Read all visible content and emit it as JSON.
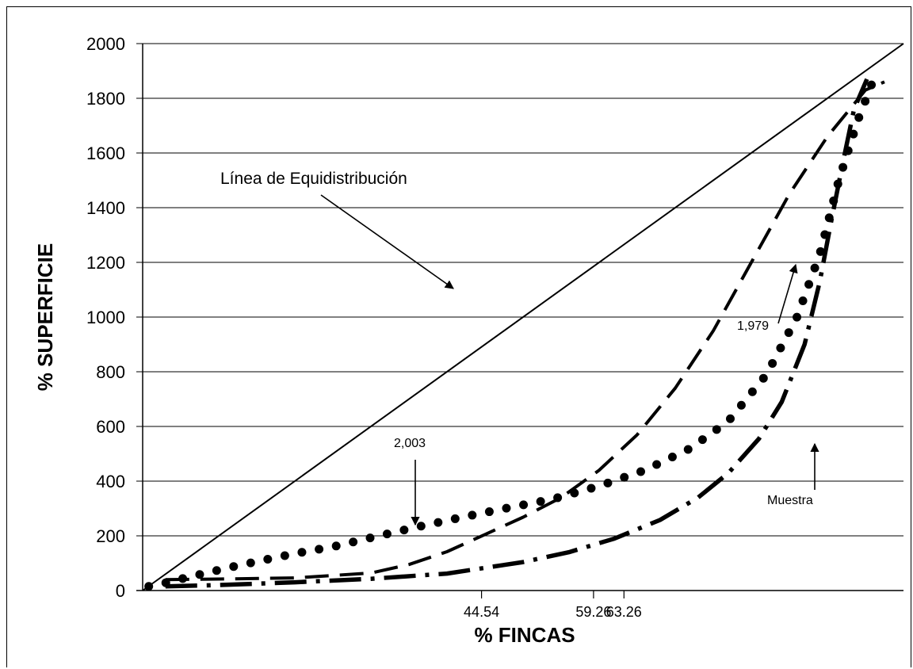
{
  "chart_data": {
    "type": "line",
    "xlabel": "% FINCAS",
    "ylabel": "% SUPERFICIE",
    "ylim": [
      0,
      2000
    ],
    "xlim": [
      0,
      100
    ],
    "yticks": [
      "0",
      "200",
      "400",
      "600",
      "800",
      "1000",
      "1200",
      "1400",
      "1600",
      "1800",
      "2000"
    ],
    "xticks": [
      {
        "label": "44.54",
        "value": 44.54
      },
      {
        "label": "59.26",
        "value": 59.26
      },
      {
        "label": "63.26",
        "value": 63.26
      }
    ],
    "grid": "horizontal",
    "series": [
      {
        "style": "solid",
        "points": [
          [
            0,
            0
          ],
          [
            100,
            2000
          ]
        ]
      },
      {
        "style": "dashed",
        "points": [
          [
            3,
            40
          ],
          [
            10,
            42
          ],
          [
            20,
            46
          ],
          [
            30,
            64
          ],
          [
            35,
            95
          ],
          [
            40,
            142
          ],
          [
            45,
            205
          ],
          [
            50,
            268
          ],
          [
            55,
            340
          ],
          [
            60,
            440
          ],
          [
            65,
            570
          ],
          [
            70,
            740
          ],
          [
            75,
            950
          ],
          [
            80,
            1200
          ],
          [
            85,
            1450
          ],
          [
            90,
            1660
          ],
          [
            95,
            1830
          ],
          [
            97.5,
            1860
          ]
        ]
      },
      {
        "style": "dotted",
        "points": [
          [
            0.8,
            15
          ],
          [
            3,
            28
          ],
          [
            5,
            42
          ],
          [
            8,
            62
          ],
          [
            12,
            88
          ],
          [
            16,
            112
          ],
          [
            20,
            135
          ],
          [
            25,
            160
          ],
          [
            30,
            193
          ],
          [
            36,
            232
          ],
          [
            42,
            268
          ],
          [
            48,
            302
          ],
          [
            54,
            335
          ],
          [
            60,
            382
          ],
          [
            66,
            440
          ],
          [
            72,
            520
          ],
          [
            77,
            620
          ],
          [
            82,
            790
          ],
          [
            86,
            1000
          ],
          [
            89,
            1230
          ],
          [
            91.5,
            1500
          ],
          [
            94,
            1720
          ],
          [
            95.8,
            1850
          ]
        ]
      },
      {
        "style": "dash-dot",
        "points": [
          [
            3,
            15
          ],
          [
            10,
            20
          ],
          [
            20,
            30
          ],
          [
            30,
            43
          ],
          [
            40,
            62
          ],
          [
            50,
            104
          ],
          [
            56,
            140
          ],
          [
            62,
            190
          ],
          [
            68,
            258
          ],
          [
            73,
            340
          ],
          [
            77,
            430
          ],
          [
            81,
            555
          ],
          [
            84,
            690
          ],
          [
            87,
            900
          ],
          [
            89,
            1130
          ],
          [
            90.5,
            1350
          ],
          [
            92,
            1560
          ],
          [
            93.5,
            1760
          ],
          [
            95.2,
            1870
          ]
        ]
      }
    ],
    "annotations": [
      {
        "text": "Línea de Equidistribución"
      },
      {
        "text": "1,979"
      },
      {
        "text": "2,003"
      },
      {
        "text": "Muestra"
      }
    ]
  }
}
